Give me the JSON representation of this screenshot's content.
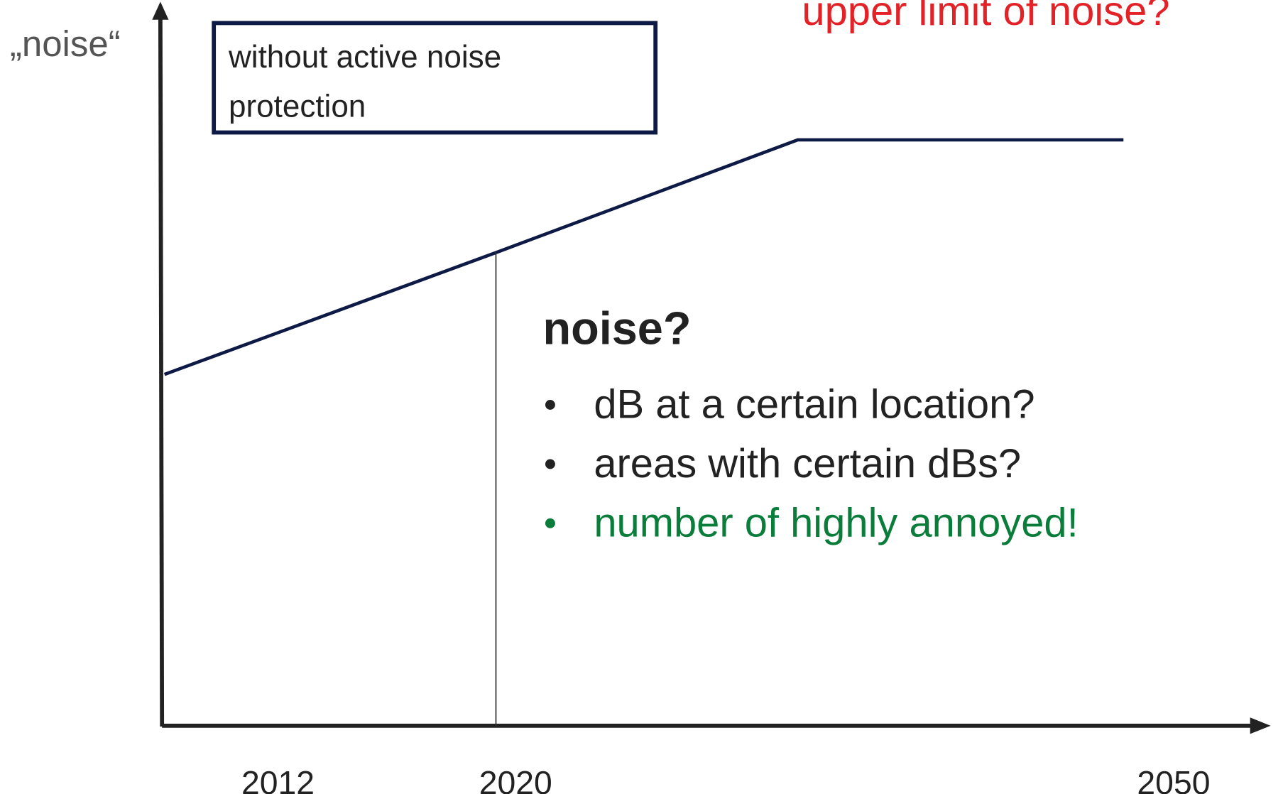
{
  "top_note": "upper limit of noise?",
  "y_axis_label": "„noise“",
  "box": {
    "lines": [
      "without active noise",
      "protection"
    ]
  },
  "x_labels": [
    "2012",
    "2020",
    "2050"
  ],
  "heading": "noise?",
  "bullets": [
    {
      "text": "dB at a certain location?",
      "color": "#222222"
    },
    {
      "text": "areas with certain dBs?",
      "color": "#222222"
    },
    {
      "text": "number of highly annoyed!",
      "color": "#0a7d3a"
    }
  ]
}
